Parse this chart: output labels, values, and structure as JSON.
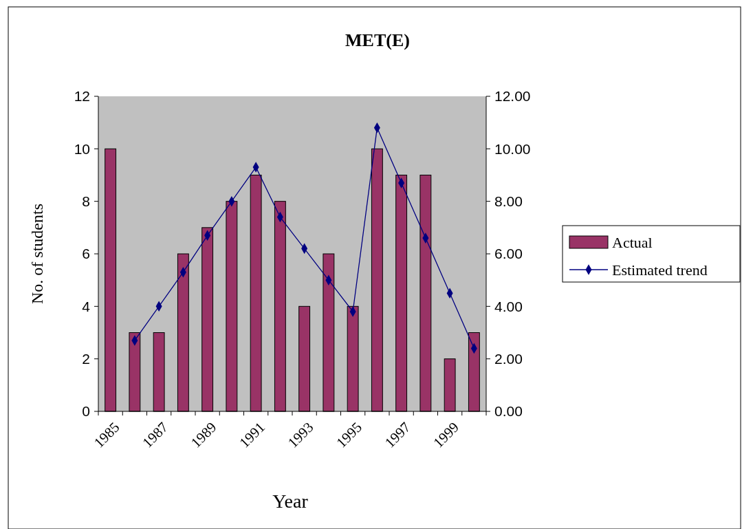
{
  "chart_data": {
    "type": "bar",
    "title": "MET(E)",
    "xlabel": "Year",
    "ylabel": "No. of students",
    "categories": [
      "1985",
      null,
      "1987",
      null,
      "1989",
      null,
      "1991",
      null,
      "1993",
      null,
      "1995",
      null,
      "1997",
      null,
      "1999",
      null
    ],
    "series": [
      {
        "name": "Actual",
        "color": "#993366",
        "values": [
          10,
          3,
          3,
          6,
          7,
          8,
          9,
          8,
          4,
          6,
          4,
          10,
          9,
          9,
          2,
          3
        ]
      },
      {
        "name": "Estimated trend",
        "type": "line",
        "axis": "y2",
        "color": "#000080",
        "marker": "diamond",
        "values": [
          null,
          2.7,
          4.0,
          5.3,
          6.7,
          8.0,
          9.3,
          7.4,
          6.2,
          5.0,
          3.8,
          10.8,
          8.7,
          6.6,
          4.5,
          2.4
        ]
      }
    ],
    "ylim": [
      0,
      12
    ],
    "yticks": [
      0,
      2,
      4,
      6,
      8,
      10,
      12
    ],
    "y2lim": [
      0,
      12
    ],
    "y2ticks": [
      {
        "value": 0,
        "label": "0.00"
      },
      {
        "value": 2,
        "label": "2.00"
      },
      {
        "value": 4,
        "label": "4.00"
      },
      {
        "value": 6,
        "label": "6.00"
      },
      {
        "value": 8,
        "label": "8.00"
      },
      {
        "value": 10,
        "label": "10.00"
      },
      {
        "value": 12,
        "label": "12.00"
      }
    ],
    "grid": false,
    "legend": "right"
  }
}
